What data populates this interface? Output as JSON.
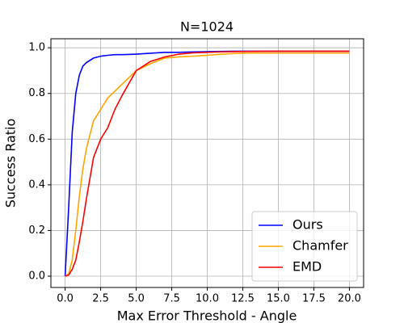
{
  "chart_data": {
    "type": "line",
    "title": "N=1024",
    "xlabel": "Max Error Threshold - Angle",
    "ylabel": "Success Ratio",
    "x": [
      0,
      0.25,
      0.5,
      0.75,
      1,
      1.25,
      1.5,
      2,
      2.5,
      3,
      3.5,
      4,
      5,
      6,
      7,
      8,
      9,
      10,
      11,
      12,
      13,
      14,
      15,
      16,
      17,
      18,
      19,
      20
    ],
    "series": [
      {
        "name": "Ours",
        "color": "#0000ff",
        "values": [
          0,
          0.3,
          0.63,
          0.8,
          0.88,
          0.92,
          0.935,
          0.955,
          0.963,
          0.967,
          0.97,
          0.97,
          0.972,
          0.976,
          0.98,
          0.98,
          0.982,
          0.983,
          0.984,
          0.985,
          0.985,
          0.985,
          0.985,
          0.985,
          0.985,
          0.985,
          0.985,
          0.985
        ]
      },
      {
        "name": "Chamfer",
        "color": "#ffa500",
        "values": [
          0,
          0.01,
          0.07,
          0.2,
          0.35,
          0.47,
          0.56,
          0.68,
          0.73,
          0.78,
          0.81,
          0.84,
          0.9,
          0.93,
          0.955,
          0.96,
          0.963,
          0.967,
          0.972,
          0.975,
          0.977,
          0.977,
          0.977,
          0.977,
          0.977,
          0.977,
          0.977,
          0.977
        ]
      },
      {
        "name": "EMD",
        "color": "#ff0000",
        "values": [
          0,
          0.005,
          0.03,
          0.07,
          0.15,
          0.24,
          0.34,
          0.52,
          0.6,
          0.65,
          0.73,
          0.79,
          0.9,
          0.94,
          0.96,
          0.972,
          0.978,
          0.98,
          0.982,
          0.983,
          0.984,
          0.985,
          0.985,
          0.985,
          0.985,
          0.985,
          0.985,
          0.985
        ]
      }
    ],
    "xlim": [
      -1,
      21
    ],
    "xticks": [
      {
        "value": 0,
        "label": "0.0"
      },
      2.5,
      {
        "value": 5,
        "label": "5.0"
      },
      7.5,
      {
        "value": 10,
        "label": "10.0"
      },
      12.5,
      {
        "value": 15,
        "label": "15.0"
      },
      17.5,
      {
        "value": 20,
        "label": "20.0"
      }
    ],
    "ylim": [
      -0.0495,
      1.0395
    ],
    "yticks": [
      {
        "value": 0,
        "label": "0.0"
      },
      0.2,
      0.4,
      0.6,
      0.8,
      {
        "value": 1,
        "label": "1.0"
      }
    ],
    "grid": true,
    "legend": "lower right"
  }
}
